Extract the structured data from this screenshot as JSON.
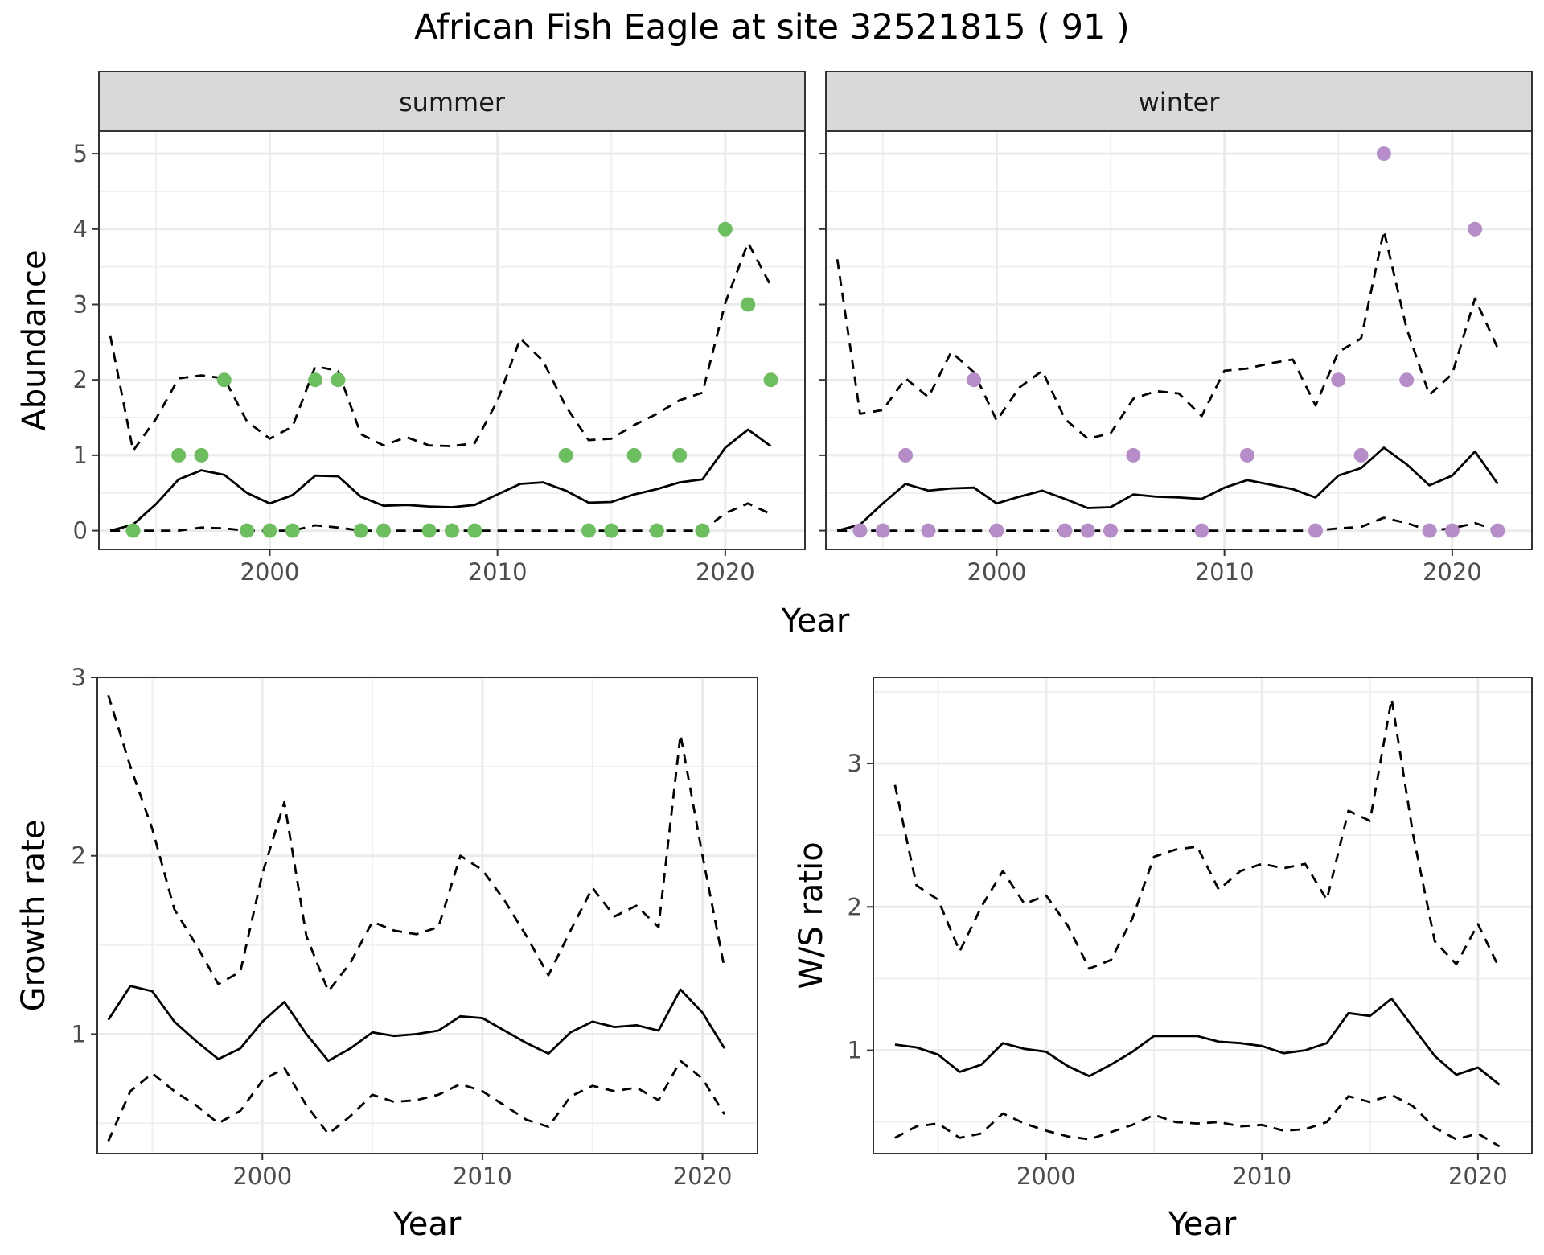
{
  "title": "African Fish Eagle at site 32521815 ( 91 )",
  "chart_data": [
    {
      "type": "line",
      "panel": "summer",
      "strip_label": "summer",
      "xlabel": "Year",
      "ylabel": "Abundance",
      "xlim": [
        1992.5,
        2023.5
      ],
      "ylim": [
        -0.25,
        5.3
      ],
      "x_ticks": [
        2000,
        2010,
        2020
      ],
      "y_ticks": [
        0,
        1,
        2,
        3,
        4,
        5
      ],
      "point_color": "#6dbe5e",
      "x": [
        1993,
        1994,
        1995,
        1996,
        1997,
        1998,
        1999,
        2000,
        2001,
        2002,
        2003,
        2004,
        2005,
        2006,
        2007,
        2008,
        2009,
        2010,
        2011,
        2012,
        2013,
        2014,
        2015,
        2016,
        2017,
        2018,
        2019,
        2020,
        2021,
        2022
      ],
      "series": [
        {
          "role": "estimate",
          "style": "solid",
          "values": [
            0,
            0.08,
            0.35,
            0.68,
            0.8,
            0.74,
            0.5,
            0.36,
            0.47,
            0.73,
            0.72,
            0.45,
            0.33,
            0.34,
            0.32,
            0.31,
            0.34,
            0.48,
            0.62,
            0.64,
            0.53,
            0.37,
            0.38,
            0.48,
            0.55,
            0.64,
            0.68,
            1.1,
            1.34,
            1.12
          ]
        },
        {
          "role": "upper",
          "style": "dashed",
          "values": [
            2.58,
            1.06,
            1.48,
            2.02,
            2.06,
            2.02,
            1.45,
            1.22,
            1.38,
            2.18,
            2.12,
            1.28,
            1.13,
            1.24,
            1.13,
            1.12,
            1.16,
            1.72,
            2.55,
            2.25,
            1.65,
            1.2,
            1.22,
            1.4,
            1.55,
            1.73,
            1.83,
            3.02,
            3.82,
            3.25
          ]
        },
        {
          "role": "lower",
          "style": "dashed",
          "values": [
            0,
            0,
            0,
            0,
            0.04,
            0.03,
            0,
            0,
            0,
            0.07,
            0.04,
            0,
            0,
            0,
            0,
            0,
            0,
            0,
            0,
            0,
            0,
            0,
            0,
            0,
            0,
            0,
            0,
            0.23,
            0.36,
            0.22
          ]
        }
      ],
      "points": [
        {
          "x": 1994,
          "y": 0
        },
        {
          "x": 1996,
          "y": 1
        },
        {
          "x": 1997,
          "y": 1
        },
        {
          "x": 1998,
          "y": 2
        },
        {
          "x": 1999,
          "y": 0
        },
        {
          "x": 2000,
          "y": 0
        },
        {
          "x": 2001,
          "y": 0
        },
        {
          "x": 2002,
          "y": 2
        },
        {
          "x": 2003,
          "y": 2
        },
        {
          "x": 2004,
          "y": 0
        },
        {
          "x": 2005,
          "y": 0
        },
        {
          "x": 2007,
          "y": 0
        },
        {
          "x": 2008,
          "y": 0
        },
        {
          "x": 2009,
          "y": 0
        },
        {
          "x": 2013,
          "y": 1
        },
        {
          "x": 2014,
          "y": 0
        },
        {
          "x": 2015,
          "y": 0
        },
        {
          "x": 2016,
          "y": 1
        },
        {
          "x": 2017,
          "y": 0
        },
        {
          "x": 2018,
          "y": 1
        },
        {
          "x": 2019,
          "y": 0
        },
        {
          "x": 2020,
          "y": 4
        },
        {
          "x": 2021,
          "y": 3
        },
        {
          "x": 2022,
          "y": 2
        }
      ]
    },
    {
      "type": "line",
      "panel": "winter",
      "strip_label": "winter",
      "xlabel": "Year",
      "ylabel": "Abundance",
      "xlim": [
        1992.5,
        2023.5
      ],
      "ylim": [
        -0.25,
        5.3
      ],
      "x_ticks": [
        2000,
        2010,
        2020
      ],
      "y_ticks": [
        0,
        1,
        2,
        3,
        4,
        5
      ],
      "point_color": "#b68dc9",
      "x": [
        1993,
        1994,
        1995,
        1996,
        1997,
        1998,
        1999,
        2000,
        2001,
        2002,
        2003,
        2004,
        2005,
        2006,
        2007,
        2008,
        2009,
        2010,
        2011,
        2012,
        2013,
        2014,
        2015,
        2016,
        2017,
        2018,
        2019,
        2020,
        2021,
        2022
      ],
      "series": [
        {
          "role": "estimate",
          "style": "solid",
          "values": [
            0,
            0.08,
            0.36,
            0.62,
            0.53,
            0.56,
            0.57,
            0.36,
            0.45,
            0.53,
            0.42,
            0.3,
            0.31,
            0.48,
            0.45,
            0.44,
            0.42,
            0.57,
            0.67,
            0.61,
            0.55,
            0.44,
            0.73,
            0.83,
            1.1,
            0.88,
            0.6,
            0.73,
            1.05,
            0.62
          ]
        },
        {
          "role": "upper",
          "style": "dashed",
          "values": [
            3.6,
            1.55,
            1.6,
            2.02,
            1.77,
            2.37,
            2.1,
            1.46,
            1.9,
            2.12,
            1.48,
            1.22,
            1.29,
            1.75,
            1.85,
            1.82,
            1.52,
            2.12,
            2.15,
            2.22,
            2.27,
            1.66,
            2.37,
            2.55,
            3.98,
            2.68,
            1.8,
            2.08,
            3.08,
            2.42
          ]
        },
        {
          "role": "lower",
          "style": "dashed",
          "values": [
            0,
            0,
            0,
            0,
            0,
            0,
            0,
            0,
            0,
            0,
            0,
            0,
            0,
            0,
            0,
            0,
            0,
            0,
            0,
            0,
            0,
            0,
            0.03,
            0.05,
            0.17,
            0.1,
            0,
            0.03,
            0.1,
            0
          ]
        }
      ],
      "points": [
        {
          "x": 1994,
          "y": 0
        },
        {
          "x": 1995,
          "y": 0
        },
        {
          "x": 1996,
          "y": 1
        },
        {
          "x": 1997,
          "y": 0
        },
        {
          "x": 1999,
          "y": 2
        },
        {
          "x": 2000,
          "y": 0
        },
        {
          "x": 2003,
          "y": 0
        },
        {
          "x": 2004,
          "y": 0
        },
        {
          "x": 2005,
          "y": 0
        },
        {
          "x": 2006,
          "y": 1
        },
        {
          "x": 2009,
          "y": 0
        },
        {
          "x": 2011,
          "y": 1
        },
        {
          "x": 2014,
          "y": 0
        },
        {
          "x": 2015,
          "y": 2
        },
        {
          "x": 2016,
          "y": 1
        },
        {
          "x": 2017,
          "y": 5
        },
        {
          "x": 2018,
          "y": 2
        },
        {
          "x": 2019,
          "y": 0
        },
        {
          "x": 2020,
          "y": 0
        },
        {
          "x": 2021,
          "y": 4
        },
        {
          "x": 2022,
          "y": 0
        }
      ]
    },
    {
      "type": "line",
      "panel": "growth",
      "xlabel": "Year",
      "ylabel": "Growth rate",
      "xlim": [
        1992.5,
        2022.5
      ],
      "ylim": [
        0.33,
        3.0
      ],
      "x_ticks": [
        2000,
        2010,
        2020
      ],
      "y_ticks": [
        1,
        2,
        3
      ],
      "x": [
        1993,
        1994,
        1995,
        1996,
        1997,
        1998,
        1999,
        2000,
        2001,
        2002,
        2003,
        2004,
        2005,
        2006,
        2007,
        2008,
        2009,
        2010,
        2011,
        2012,
        2013,
        2014,
        2015,
        2016,
        2017,
        2018,
        2019,
        2020,
        2021
      ],
      "series": [
        {
          "role": "estimate",
          "style": "solid",
          "values": [
            1.08,
            1.27,
            1.24,
            1.07,
            0.96,
            0.86,
            0.92,
            1.07,
            1.18,
            1.0,
            0.85,
            0.92,
            1.01,
            0.99,
            1.0,
            1.02,
            1.1,
            1.09,
            1.02,
            0.95,
            0.89,
            1.01,
            1.07,
            1.04,
            1.05,
            1.02,
            1.25,
            1.12,
            0.92
          ]
        },
        {
          "role": "upper",
          "style": "dashed",
          "values": [
            2.9,
            2.5,
            2.15,
            1.7,
            1.5,
            1.28,
            1.35,
            1.9,
            2.3,
            1.55,
            1.24,
            1.4,
            1.63,
            1.58,
            1.56,
            1.6,
            2.0,
            1.92,
            1.75,
            1.55,
            1.33,
            1.58,
            1.82,
            1.66,
            1.72,
            1.6,
            2.68,
            2.0,
            1.37
          ]
        },
        {
          "role": "lower",
          "style": "dashed",
          "values": [
            0.4,
            0.68,
            0.78,
            0.68,
            0.6,
            0.5,
            0.57,
            0.74,
            0.81,
            0.6,
            0.44,
            0.54,
            0.66,
            0.62,
            0.63,
            0.66,
            0.72,
            0.68,
            0.6,
            0.52,
            0.48,
            0.65,
            0.71,
            0.68,
            0.7,
            0.63,
            0.85,
            0.75,
            0.55
          ]
        }
      ]
    },
    {
      "type": "line",
      "panel": "ws_ratio",
      "xlabel": "Year",
      "ylabel": "W/S ratio",
      "xlim": [
        1992.0,
        2022.5
      ],
      "ylim": [
        0.28,
        3.6
      ],
      "x_ticks": [
        2000,
        2010,
        2020
      ],
      "y_ticks": [
        1,
        2,
        3
      ],
      "x": [
        1993,
        1994,
        1995,
        1996,
        1997,
        1998,
        1999,
        2000,
        2001,
        2002,
        2003,
        2004,
        2005,
        2006,
        2007,
        2008,
        2009,
        2010,
        2011,
        2012,
        2013,
        2014,
        2015,
        2016,
        2017,
        2018,
        2019,
        2020,
        2021
      ],
      "series": [
        {
          "role": "estimate",
          "style": "solid",
          "values": [
            1.04,
            1.02,
            0.97,
            0.85,
            0.9,
            1.05,
            1.01,
            0.99,
            0.89,
            0.82,
            0.9,
            0.99,
            1.1,
            1.1,
            1.1,
            1.06,
            1.05,
            1.03,
            0.98,
            1.0,
            1.05,
            1.26,
            1.24,
            1.36,
            1.16,
            0.96,
            0.83,
            0.88,
            0.76
          ]
        },
        {
          "role": "upper",
          "style": "dashed",
          "values": [
            2.85,
            2.15,
            2.05,
            1.69,
            2.0,
            2.25,
            2.02,
            2.08,
            1.87,
            1.57,
            1.63,
            1.92,
            2.35,
            2.4,
            2.42,
            2.12,
            2.25,
            2.3,
            2.27,
            2.3,
            2.05,
            2.67,
            2.6,
            3.45,
            2.5,
            1.76,
            1.6,
            1.88,
            1.57
          ]
        },
        {
          "role": "lower",
          "style": "dashed",
          "values": [
            0.39,
            0.47,
            0.49,
            0.39,
            0.42,
            0.56,
            0.49,
            0.44,
            0.4,
            0.38,
            0.43,
            0.48,
            0.55,
            0.5,
            0.49,
            0.5,
            0.47,
            0.48,
            0.44,
            0.45,
            0.5,
            0.68,
            0.64,
            0.69,
            0.61,
            0.46,
            0.38,
            0.42,
            0.33
          ]
        }
      ]
    }
  ]
}
